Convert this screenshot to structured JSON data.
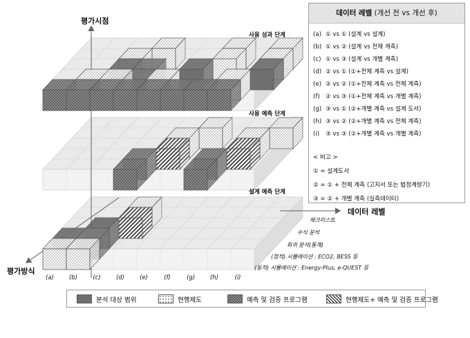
{
  "axis": {
    "vertical": "평가시점",
    "horizontal": "데이터 레벨",
    "depth": "평가방식"
  },
  "phases": [
    "사용 성과 단계",
    "사용 예측 단계",
    "설계 예측 단계"
  ],
  "methods": [
    "체크리스트",
    "수식 분석",
    "회귀 분석(통계)",
    "(정적) 시뮬레이션 : ECO2, BESS 등",
    "(동적) 시뮬레이션 : Energy-Plus, e-QUEST 등"
  ],
  "cols": [
    "(a)",
    "(b)",
    "(c)",
    "(d)",
    "(e)",
    "(f)",
    "(g)",
    "(h)",
    "(i)"
  ],
  "legend_title": {
    "strong": "데이터 레벨",
    "rest": " (개선 전 vs 개선 후)"
  },
  "data_levels": [
    {
      "key": "(a)",
      "text": "① vs ① (설계 vs 설계)"
    },
    {
      "key": "(b)",
      "text": "① vs ② (설계 vs 전체 계측)"
    },
    {
      "key": "(c)",
      "text": "① vs ③ (설계 vs 개별 계측)"
    },
    {
      "key": "(d)",
      "text": "② vs ① (①+전체 계측 vs 설계)"
    },
    {
      "key": "(e)",
      "text": "② vs ② (①+전체 계측 vs 전체 계측)"
    },
    {
      "key": "(f)",
      "text": "② vs ③ (①+전체 계측 vs 개별 계측)"
    },
    {
      "key": "(g)",
      "text": "③ vs ① (②+개별 계측 vs 설계 도서)"
    },
    {
      "key": "(h)",
      "text": "③ vs ② (②+개별 계측 vs 전체 계측)"
    },
    {
      "key": "(i)",
      "text": "③ vs ③ (②+개별 계측 vs 개별 계측)"
    }
  ],
  "notes_title": "< 비고 >",
  "notes": [
    "① = 설계도서",
    "② = ① + 전체 계측 (고지서 또는 법정계량기)",
    "③ = ② + 개별 계측 (실측데이터)"
  ],
  "legend_items": [
    {
      "label": "분석 대상 범위",
      "pattern": "solid"
    },
    {
      "label": "현행제도",
      "pattern": "dots"
    },
    {
      "label": "예측 및 검증 프로그램",
      "pattern": "crosshatch"
    },
    {
      "label": "현행제도+ 예측 및 검증 프로그램",
      "pattern": "diagonal"
    }
  ],
  "colors": {
    "solid_fill": "#6f6f6f",
    "grid_face": "#eeeeee",
    "grid_line": "#c8c8c8"
  }
}
